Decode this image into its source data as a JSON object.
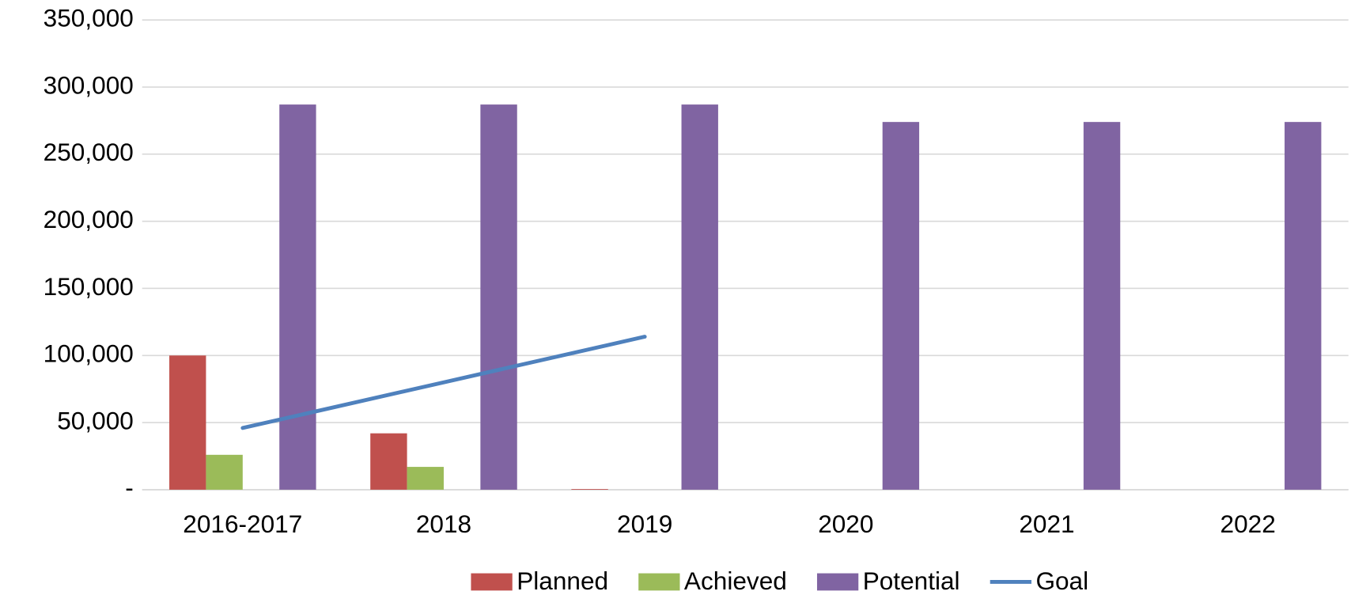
{
  "chart_data": {
    "type": "bar",
    "categories": [
      "2016-2017",
      "2018",
      "2019",
      "2020",
      "2021",
      "2022"
    ],
    "series": [
      {
        "name": "Planned",
        "type": "bar",
        "color": "#c0504d",
        "values": [
          100000,
          42000,
          500,
          0,
          0,
          0
        ]
      },
      {
        "name": "Achieved",
        "type": "bar",
        "color": "#9bbb59",
        "values": [
          26000,
          17000,
          0,
          0,
          0,
          0
        ]
      },
      {
        "name": "Potential",
        "type": "bar",
        "color": "#8064a2",
        "values": [
          287000,
          287000,
          287000,
          274000,
          274000,
          274000
        ]
      },
      {
        "name": "Goal",
        "type": "line",
        "color": "#4f81bd",
        "values": [
          46000,
          80000,
          114000,
          null,
          null,
          null
        ]
      }
    ],
    "ylim": [
      0,
      350000
    ],
    "yticks": [
      {
        "value": 0,
        "label": "-"
      },
      {
        "value": 50000,
        "label": "50,000"
      },
      {
        "value": 100000,
        "label": "100,000"
      },
      {
        "value": 150000,
        "label": "150,000"
      },
      {
        "value": 200000,
        "label": "200,000"
      },
      {
        "value": 250000,
        "label": "250,000"
      },
      {
        "value": 300000,
        "label": "300,000"
      },
      {
        "value": 350000,
        "label": "350,000"
      }
    ],
    "grid": true,
    "legend": "bottom"
  }
}
